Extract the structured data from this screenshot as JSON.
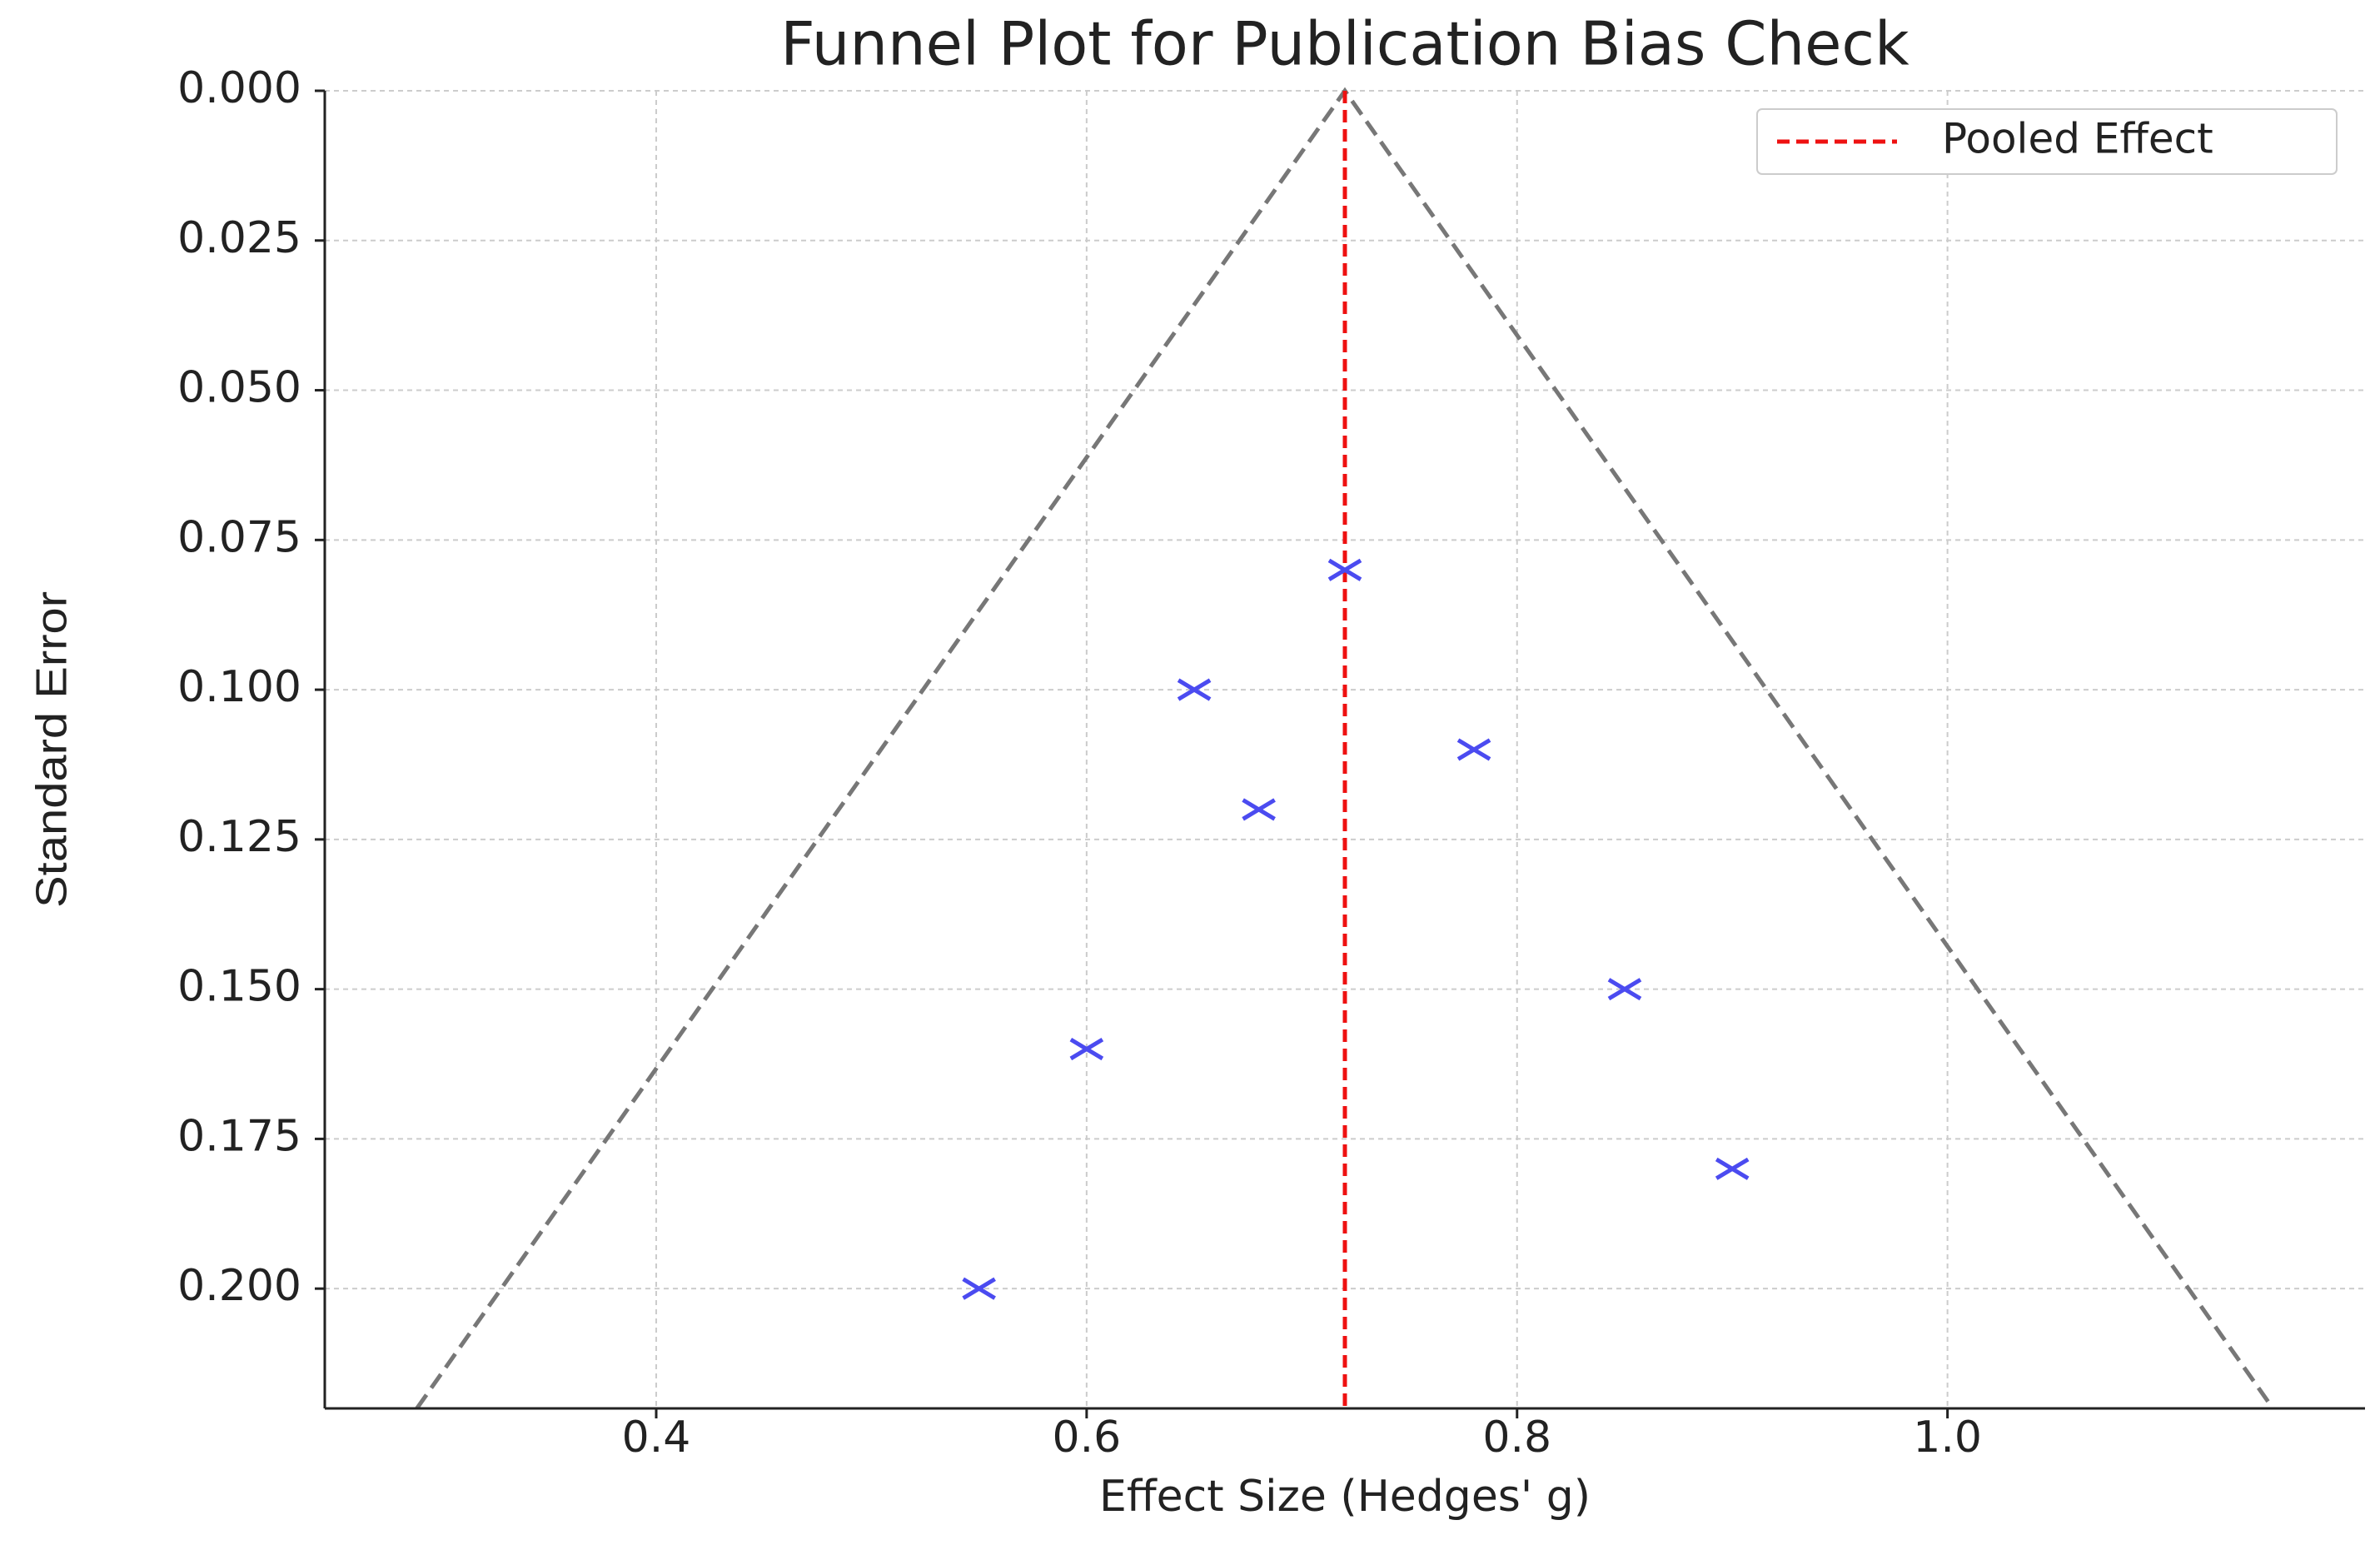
{
  "chart_data": {
    "type": "scatter",
    "title": "Funnel Plot for Publication Bias Check",
    "x_label": "Effect Size (Hedges' g)",
    "y_label": "Standard Error",
    "x": [
      0.72,
      0.65,
      0.78,
      0.68,
      0.85,
      0.6,
      0.9,
      0.55
    ],
    "y": [
      0.08,
      0.1,
      0.11,
      0.12,
      0.15,
      0.16,
      0.18,
      0.2
    ],
    "color": "#4b4bf0",
    "marker": "x",
    "xlim": [
      0.246,
      1.194
    ],
    "ylim": [
      0,
      0.22
    ],
    "y_inverted": true,
    "xticks": [
      0.4,
      0.6,
      0.8,
      {
        "value": 1,
        "label": "1.0"
      }
    ],
    "yticks": [
      {
        "value": 0,
        "label": "0.000"
      },
      {
        "value": 0.025,
        "label": "0.025"
      },
      {
        "value": 0.05,
        "label": "0.050"
      },
      {
        "value": 0.075,
        "label": "0.075"
      },
      {
        "value": 0.1,
        "label": "0.100"
      },
      {
        "value": 0.125,
        "label": "0.125"
      },
      {
        "value": 0.15,
        "label": "0.150"
      },
      {
        "value": 0.175,
        "label": "0.175"
      },
      {
        "value": 0.2,
        "label": "0.200"
      }
    ],
    "grid": true,
    "legend": "upper right",
    "pooled_effect": {
      "name": "Pooled Effect",
      "value": 0.72,
      "color": "#ee1111"
    },
    "funnel": {
      "color": "#777777",
      "x": [
        0.2888,
        0.72,
        1.1512
      ],
      "y": [
        0.22,
        0,
        0.22
      ]
    }
  }
}
